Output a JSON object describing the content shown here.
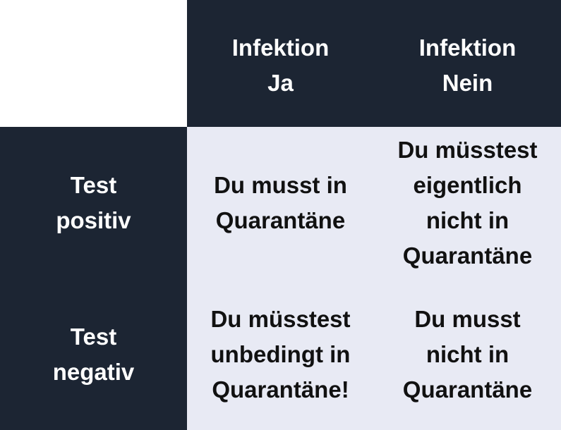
{
  "colors": {
    "header_bg": "#1c2533",
    "body_bg": "#e8eaf4"
  },
  "columns": [
    "Infektion\nJa",
    "Infektion\nNein"
  ],
  "rows": [
    {
      "label": "Test\npositiv",
      "cells": [
        "Du musst in\nQuarantäne",
        "Du müsstest\neigentlich\nnicht in\nQuarantäne"
      ]
    },
    {
      "label": "Test\nnegativ",
      "cells": [
        "Du müsstest\nunbedingt in\nQuarantäne!",
        "Du musst\nnicht in\nQuarantäne"
      ]
    }
  ]
}
